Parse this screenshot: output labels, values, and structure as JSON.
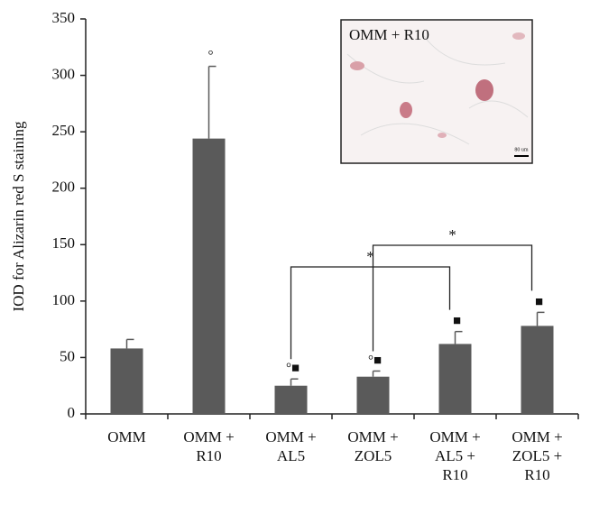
{
  "chart_data": {
    "type": "bar",
    "y_label": "IOD for Alizarin red S staining",
    "categories": [
      [
        "OMM"
      ],
      [
        "OMM +",
        "R10"
      ],
      [
        "OMM +",
        "AL5"
      ],
      [
        "OMM +",
        "ZOL5"
      ],
      [
        "OMM +",
        "AL5 +",
        "R10"
      ],
      [
        "OMM +",
        "ZOL5 +",
        "R10"
      ]
    ],
    "values": [
      58,
      244,
      25,
      33,
      62,
      78
    ],
    "errors": [
      8,
      64,
      6,
      5,
      11,
      12
    ],
    "markers": [
      null,
      "°",
      "°■",
      "°■",
      "■",
      "■"
    ],
    "color": "#5a5a5a",
    "ylim": [
      0,
      350
    ],
    "yticks": [
      0,
      50,
      100,
      150,
      200,
      250,
      300,
      350
    ],
    "significance": [
      "*",
      "*"
    ],
    "inset_title": "OMM + R10",
    "inset_scale": "80 um"
  }
}
